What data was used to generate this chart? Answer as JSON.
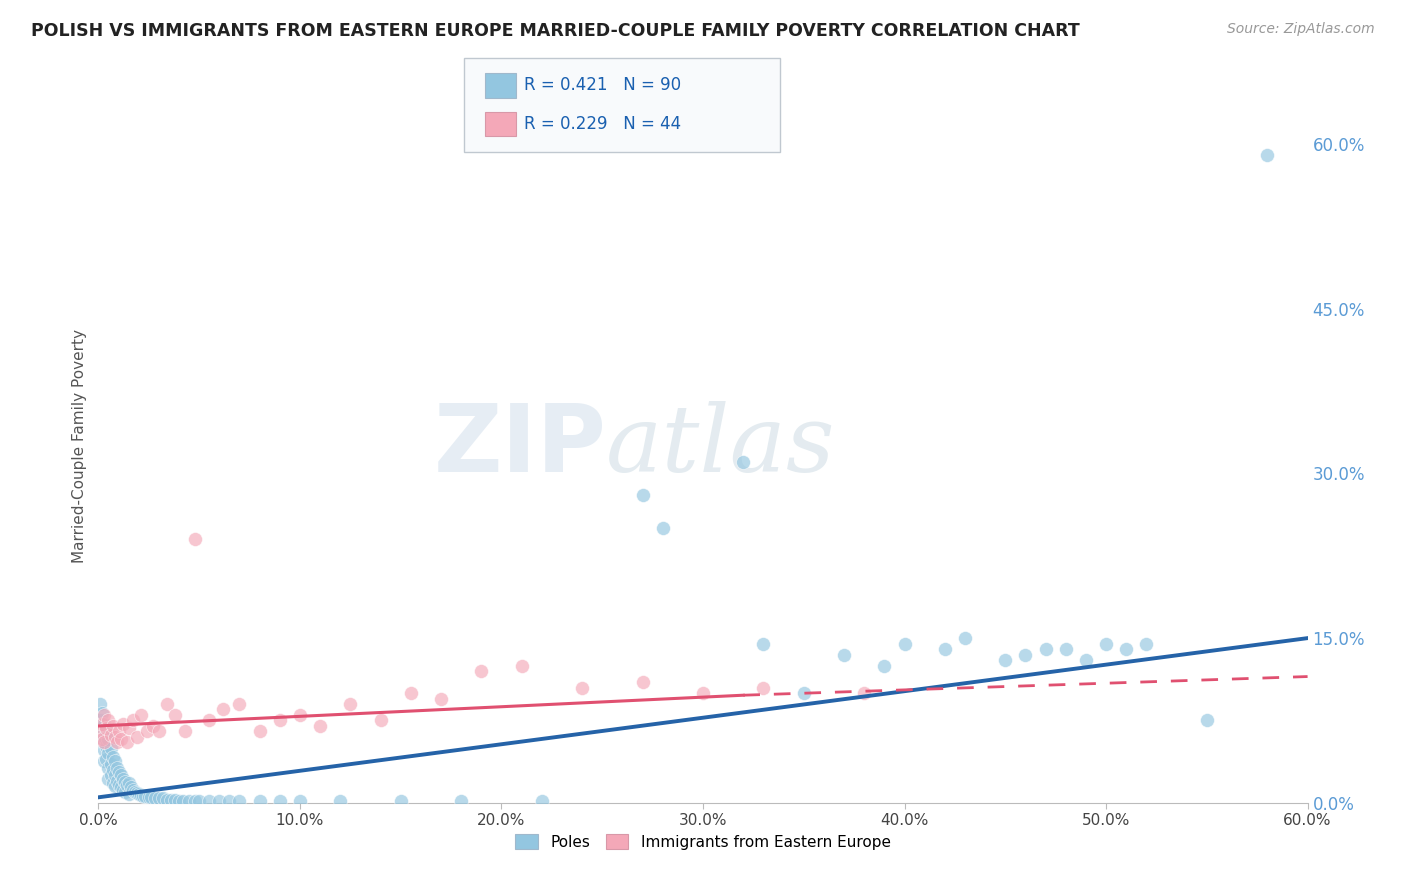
{
  "title": "POLISH VS IMMIGRANTS FROM EASTERN EUROPE MARRIED-COUPLE FAMILY POVERTY CORRELATION CHART",
  "source": "Source: ZipAtlas.com",
  "ylabel": "Married-Couple Family Poverty",
  "xlim": [
    0.0,
    0.6
  ],
  "ylim": [
    0.0,
    0.65
  ],
  "xticks": [
    0.0,
    0.1,
    0.2,
    0.3,
    0.4,
    0.5,
    0.6
  ],
  "yticks_right": [
    0.0,
    0.15,
    0.3,
    0.45,
    0.6
  ],
  "ytick_labels_right": [
    "0.0%",
    "15.0%",
    "30.0%",
    "45.0%",
    "60.0%"
  ],
  "xtick_labels": [
    "0.0%",
    "10.0%",
    "20.0%",
    "30.0%",
    "40.0%",
    "50.0%",
    "60.0%"
  ],
  "blue_color": "#93c6e0",
  "pink_color": "#f4a8b8",
  "blue_line_color": "#2563a8",
  "pink_line_color": "#e05070",
  "R_blue": 0.421,
  "N_blue": 90,
  "R_pink": 0.229,
  "N_pink": 44,
  "blue_scatter_x": [
    0.001,
    0.001,
    0.002,
    0.002,
    0.002,
    0.003,
    0.003,
    0.003,
    0.003,
    0.004,
    0.004,
    0.004,
    0.005,
    0.005,
    0.005,
    0.005,
    0.006,
    0.006,
    0.006,
    0.007,
    0.007,
    0.007,
    0.008,
    0.008,
    0.008,
    0.009,
    0.009,
    0.01,
    0.01,
    0.011,
    0.011,
    0.012,
    0.012,
    0.013,
    0.013,
    0.014,
    0.015,
    0.015,
    0.016,
    0.017,
    0.018,
    0.019,
    0.02,
    0.021,
    0.022,
    0.023,
    0.025,
    0.026,
    0.028,
    0.03,
    0.032,
    0.034,
    0.036,
    0.038,
    0.04,
    0.042,
    0.045,
    0.048,
    0.05,
    0.055,
    0.06,
    0.065,
    0.07,
    0.08,
    0.09,
    0.1,
    0.12,
    0.15,
    0.18,
    0.22,
    0.27,
    0.32,
    0.37,
    0.39,
    0.42,
    0.45,
    0.47,
    0.49,
    0.52,
    0.55,
    0.28,
    0.33,
    0.35,
    0.4,
    0.43,
    0.46,
    0.48,
    0.5,
    0.51,
    0.58
  ],
  "blue_scatter_y": [
    0.09,
    0.075,
    0.082,
    0.068,
    0.055,
    0.072,
    0.06,
    0.048,
    0.038,
    0.065,
    0.052,
    0.04,
    0.058,
    0.045,
    0.032,
    0.022,
    0.05,
    0.035,
    0.025,
    0.042,
    0.03,
    0.018,
    0.038,
    0.025,
    0.015,
    0.032,
    0.02,
    0.028,
    0.016,
    0.025,
    0.014,
    0.022,
    0.012,
    0.019,
    0.01,
    0.016,
    0.018,
    0.008,
    0.014,
    0.012,
    0.01,
    0.009,
    0.008,
    0.007,
    0.006,
    0.006,
    0.005,
    0.005,
    0.004,
    0.004,
    0.004,
    0.003,
    0.003,
    0.003,
    0.002,
    0.002,
    0.002,
    0.002,
    0.002,
    0.002,
    0.002,
    0.002,
    0.002,
    0.002,
    0.002,
    0.002,
    0.002,
    0.002,
    0.002,
    0.002,
    0.28,
    0.31,
    0.135,
    0.125,
    0.14,
    0.13,
    0.14,
    0.13,
    0.145,
    0.075,
    0.25,
    0.145,
    0.1,
    0.145,
    0.15,
    0.135,
    0.14,
    0.145,
    0.14,
    0.59
  ],
  "pink_scatter_x": [
    0.001,
    0.002,
    0.002,
    0.003,
    0.003,
    0.004,
    0.005,
    0.006,
    0.007,
    0.008,
    0.009,
    0.01,
    0.011,
    0.012,
    0.014,
    0.015,
    0.017,
    0.019,
    0.021,
    0.024,
    0.027,
    0.03,
    0.034,
    0.038,
    0.043,
    0.048,
    0.055,
    0.062,
    0.07,
    0.08,
    0.09,
    0.1,
    0.11,
    0.125,
    0.14,
    0.155,
    0.17,
    0.19,
    0.21,
    0.24,
    0.27,
    0.3,
    0.33,
    0.38
  ],
  "pink_scatter_y": [
    0.065,
    0.072,
    0.058,
    0.08,
    0.055,
    0.068,
    0.075,
    0.062,
    0.07,
    0.06,
    0.055,
    0.065,
    0.058,
    0.072,
    0.055,
    0.068,
    0.075,
    0.06,
    0.08,
    0.065,
    0.07,
    0.065,
    0.09,
    0.08,
    0.065,
    0.24,
    0.075,
    0.085,
    0.09,
    0.065,
    0.075,
    0.08,
    0.07,
    0.09,
    0.075,
    0.1,
    0.095,
    0.12,
    0.125,
    0.105,
    0.11,
    0.1,
    0.105,
    0.1
  ]
}
